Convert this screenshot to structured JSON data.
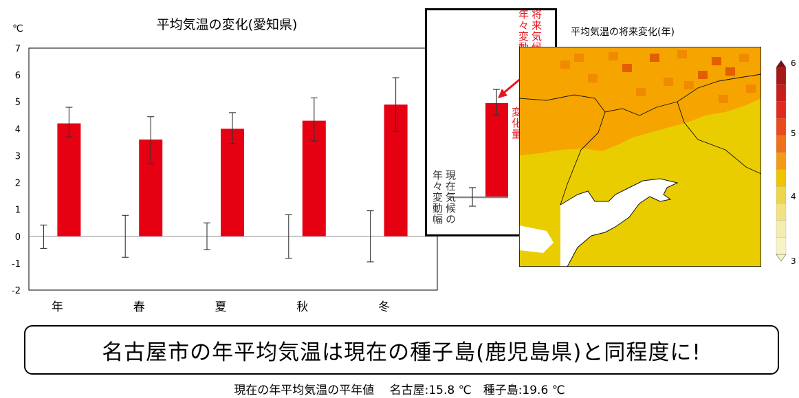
{
  "chart_data": [
    {
      "type": "bar",
      "title": "平均気温の変化(愛知県)",
      "unit": "℃",
      "categories": [
        "年",
        "春",
        "夏",
        "秋",
        "冬"
      ],
      "ylim": [
        -2,
        7
      ],
      "yticks": [
        -2,
        -1,
        0,
        1,
        2,
        3,
        4,
        5,
        6,
        7
      ],
      "series": [
        {
          "values": [
            4.2,
            3.6,
            4.0,
            4.3,
            4.9
          ],
          "error_low": [
            3.7,
            2.7,
            3.45,
            3.55,
            3.9
          ],
          "error_high": [
            4.8,
            4.45,
            4.6,
            5.15,
            5.9
          ],
          "color": "#e50012"
        }
      ],
      "current_variability": [
        {
          "low": -0.45,
          "high": 0.42
        },
        {
          "low": -0.78,
          "high": 0.78
        },
        {
          "low": -0.5,
          "high": 0.5
        },
        {
          "low": -0.82,
          "high": 0.8
        },
        {
          "low": -0.95,
          "high": 0.95
        }
      ]
    }
  ],
  "inset": {
    "future_label": "将来気候の\n年々変動幅",
    "change_label": "現在気候からの\n変化量",
    "current_label": "現在気候の\n年々変動幅"
  },
  "map": {
    "title": "平均気温の将来変化(年)",
    "colorbar_unit": "℃",
    "colorbar_ticks": [
      "6",
      "5",
      "4",
      "3"
    ],
    "colors": [
      "#e9cd00",
      "#f5a400",
      "#f08a00",
      "#e25e00"
    ]
  },
  "message": "名古屋市の年平均気温は現在の種子島(鹿児島県)と同程度に!",
  "footnote": "現在の年平均気温の平年値　 名古屋:15.8 ℃　種子島:19.6 ℃"
}
